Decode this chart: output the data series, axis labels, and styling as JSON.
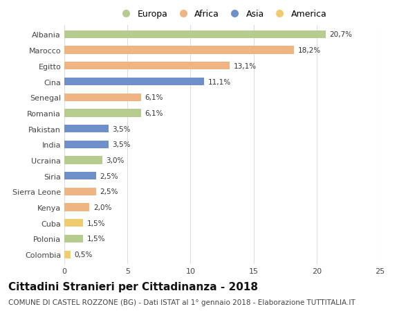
{
  "countries": [
    "Albania",
    "Marocco",
    "Egitto",
    "Cina",
    "Senegal",
    "Romania",
    "Pakistan",
    "India",
    "Ucraina",
    "Siria",
    "Sierra Leone",
    "Kenya",
    "Cuba",
    "Polonia",
    "Colombia"
  ],
  "values": [
    20.7,
    18.2,
    13.1,
    11.1,
    6.1,
    6.1,
    3.5,
    3.5,
    3.0,
    2.5,
    2.5,
    2.0,
    1.5,
    1.5,
    0.5
  ],
  "labels": [
    "20,7%",
    "18,2%",
    "13,1%",
    "11,1%",
    "6,1%",
    "6,1%",
    "3,5%",
    "3,5%",
    "3,0%",
    "2,5%",
    "2,5%",
    "2,0%",
    "1,5%",
    "1,5%",
    "0,5%"
  ],
  "continents": [
    "Europa",
    "Africa",
    "Africa",
    "Asia",
    "Africa",
    "Europa",
    "Asia",
    "Asia",
    "Europa",
    "Asia",
    "Africa",
    "Africa",
    "America",
    "Europa",
    "America"
  ],
  "continent_colors": {
    "Europa": "#b5cc8e",
    "Africa": "#f0b482",
    "Asia": "#6e8fc9",
    "America": "#f0cc6e"
  },
  "legend_order": [
    "Europa",
    "Africa",
    "Asia",
    "America"
  ],
  "xlim": [
    0,
    25
  ],
  "title": "Cittadini Stranieri per Cittadinanza - 2018",
  "subtitle": "COMUNE DI CASTEL ROZZONE (BG) - Dati ISTAT al 1° gennaio 2018 - Elaborazione TUTTITALIA.IT",
  "title_fontsize": 11,
  "subtitle_fontsize": 7.5,
  "bg_color": "#ffffff",
  "grid_color": "#dddddd",
  "bar_height": 0.5
}
